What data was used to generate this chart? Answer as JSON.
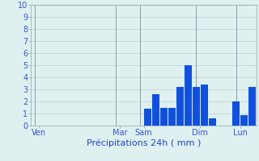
{
  "title": "",
  "xlabel": "Précipitations 24h ( mm )",
  "ylabel": "",
  "background_color": "#dff0f0",
  "bar_color": "#1050dd",
  "grid_color": "#b8d0d0",
  "vline_color": "#8090a0",
  "ylim": [
    0,
    10
  ],
  "yticks": [
    0,
    1,
    2,
    3,
    4,
    5,
    6,
    7,
    8,
    9,
    10
  ],
  "n_bars": 28,
  "bar_values": [
    0,
    0,
    0,
    0,
    0,
    0,
    0,
    0,
    0,
    0,
    0,
    0,
    0,
    0,
    1.4,
    2.6,
    1.5,
    1.5,
    3.2,
    5.0,
    3.2,
    3.4,
    0.6,
    0,
    0,
    2.0,
    0.9,
    3.2
  ],
  "day_labels": [
    "Ven",
    "Mar",
    "Sam",
    "Dim",
    "Lun"
  ],
  "day_positions": [
    0.5,
    10.5,
    13.5,
    20.5,
    25.5
  ],
  "vline_positions": [
    0.5,
    10.5,
    13.5,
    20.5,
    25.5
  ],
  "xlabel_color": "#2244bb",
  "tick_label_color": "#3355cc",
  "xlabel_fontsize": 8,
  "tick_fontsize": 7
}
